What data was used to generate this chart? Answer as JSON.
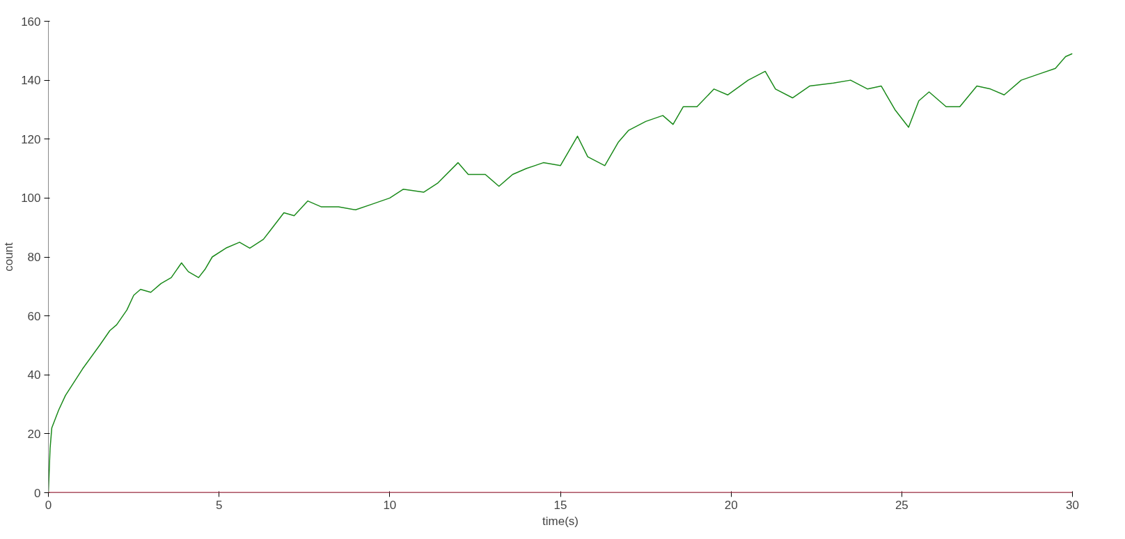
{
  "chart_data": {
    "type": "line",
    "xlabel": "time(s)",
    "ylabel": "count",
    "x": [
      0,
      0.05,
      0.1,
      0.3,
      0.5,
      1,
      1.5,
      1.8,
      2,
      2.3,
      2.5,
      2.7,
      3,
      3.3,
      3.6,
      3.9,
      4.1,
      4.4,
      4.6,
      4.8,
      5.2,
      5.6,
      5.9,
      6.3,
      6.5,
      6.9,
      7.2,
      7.6,
      8,
      8.5,
      9,
      9.5,
      10,
      10.4,
      11,
      11.4,
      12,
      12.3,
      12.8,
      13.2,
      13.6,
      14,
      14.5,
      15,
      15.5,
      15.8,
      16.3,
      16.7,
      17,
      17.5,
      18,
      18.3,
      18.6,
      19,
      19.5,
      19.9,
      20.5,
      21,
      21.3,
      21.8,
      22.3,
      23,
      23.5,
      24,
      24.4,
      24.8,
      25.2,
      25.5,
      25.8,
      26.3,
      26.7,
      27.2,
      27.6,
      28,
      28.5,
      29,
      29.5,
      29.8,
      30
    ],
    "series": [
      {
        "color": "#1a8a1a",
        "values": [
          0,
          15,
          22,
          28,
          33,
          42,
          50,
          55,
          57,
          62,
          67,
          69,
          68,
          71,
          73,
          78,
          75,
          73,
          76,
          80,
          83,
          85,
          83,
          86,
          89,
          95,
          94,
          99,
          97,
          97,
          96,
          98,
          100,
          103,
          102,
          105,
          112,
          108,
          108,
          104,
          108,
          110,
          112,
          111,
          121,
          114,
          111,
          119,
          123,
          126,
          128,
          125,
          131,
          131,
          137,
          135,
          140,
          143,
          137,
          134,
          138,
          139,
          140,
          137,
          138,
          130,
          124,
          133,
          136,
          131,
          131,
          138,
          137,
          135,
          140,
          142,
          144,
          148,
          149
        ]
      }
    ],
    "ref_lines": [
      {
        "axis": "y",
        "value": 0,
        "color": "#c0304a"
      }
    ],
    "xlim": [
      0,
      30
    ],
    "ylim": [
      0,
      160
    ],
    "xticks": [
      0,
      5,
      10,
      15,
      20,
      25,
      30
    ],
    "yticks": [
      0,
      20,
      40,
      60,
      80,
      100,
      120,
      140,
      160
    ],
    "grid": false
  }
}
